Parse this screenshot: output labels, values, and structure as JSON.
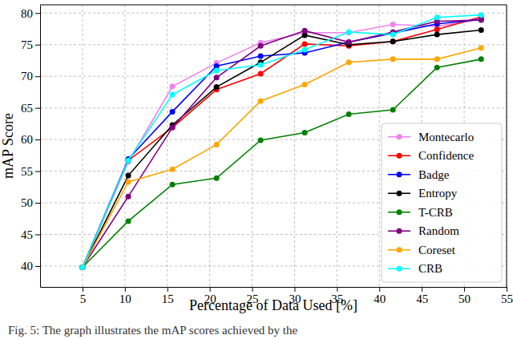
{
  "chart_data": {
    "type": "line",
    "x_label": "Percentage of Data Used [%]",
    "y_label": "mAP Score",
    "caption": "Fig. 5: The graph illustrates the mAP scores achieved by the",
    "x": [
      5,
      10.4,
      15.6,
      20.8,
      26,
      31.2,
      36.4,
      41.6,
      46.8,
      52
    ],
    "xlim": [
      0,
      55
    ],
    "xticks": [
      5,
      10,
      15,
      20,
      25,
      30,
      35,
      40,
      45,
      50,
      55
    ],
    "ylim": [
      36.7,
      81.3
    ],
    "yticks": [
      40,
      45,
      50,
      55,
      60,
      65,
      70,
      75,
      80
    ],
    "grid": true,
    "legend": "lower right",
    "marker": "circle",
    "line_style": "solid",
    "series": [
      {
        "name": "Montecarlo",
        "color": "#ee82ee",
        "values": [
          39.8,
          56.5,
          68.4,
          72.1,
          75.3,
          76.9,
          76.9,
          78.2,
          77.9,
          79.0
        ]
      },
      {
        "name": "Confidence",
        "color": "#ff0000",
        "values": [
          39.8,
          56.7,
          61.9,
          67.9,
          70.4,
          75.1,
          74.8,
          75.5,
          77.4,
          79.4
        ]
      },
      {
        "name": "Badge",
        "color": "#0000ff",
        "values": [
          39.8,
          56.9,
          64.4,
          71.6,
          73.2,
          73.7,
          75.4,
          76.8,
          78.3,
          79.0
        ]
      },
      {
        "name": "Entropy",
        "color": "#000000",
        "values": [
          39.8,
          54.3,
          62.3,
          68.3,
          72.2,
          76.5,
          75.0,
          75.5,
          76.6,
          77.3
        ]
      },
      {
        "name": "T-CRB",
        "color": "#008000",
        "values": [
          39.8,
          47.1,
          52.9,
          53.9,
          59.9,
          61.1,
          64.0,
          64.7,
          71.4,
          72.7
        ]
      },
      {
        "name": "Random",
        "color": "#800080",
        "values": [
          39.8,
          51.0,
          61.9,
          69.8,
          74.8,
          77.2,
          75.4,
          77.0,
          78.7,
          78.9
        ]
      },
      {
        "name": "Coreset",
        "color": "#ffa500",
        "values": [
          39.8,
          53.3,
          55.3,
          59.2,
          66.1,
          68.7,
          72.2,
          72.7,
          72.7,
          74.5
        ]
      },
      {
        "name": "CRB",
        "color": "#00ffff",
        "values": [
          39.8,
          56.7,
          67.1,
          70.9,
          71.8,
          74.2,
          77.0,
          76.6,
          79.3,
          79.7
        ]
      }
    ]
  }
}
